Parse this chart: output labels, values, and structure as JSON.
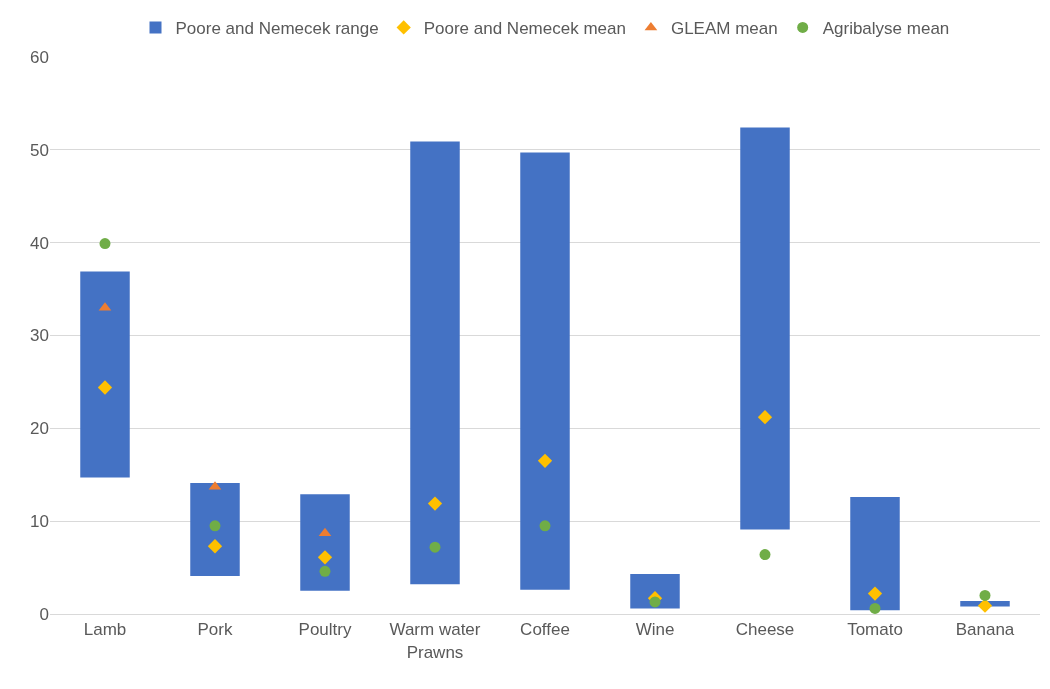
{
  "chart_data": {
    "type": "bar",
    "categories": [
      "Lamb",
      "Pork",
      "Poultry",
      "Warm water Prawns",
      "Coffee",
      "Wine",
      "Cheese",
      "Tomato",
      "Banana"
    ],
    "series": [
      {
        "name": "Poore and Nemecek range",
        "color": "#4472c4",
        "base": [
          14.7,
          4.1,
          2.5,
          3.2,
          2.6,
          0.6,
          9.1,
          0.4,
          0.8
        ],
        "values": [
          22.2,
          10.0,
          10.4,
          47.7,
          47.1,
          3.7,
          43.3,
          12.2,
          0.6
        ]
      },
      {
        "name": "Poore and Nemecek mean",
        "type": "scatter",
        "marker": "diamond",
        "color": "#ffc000",
        "values": [
          24.4,
          7.3,
          6.1,
          11.9,
          16.5,
          1.7,
          21.2,
          2.2,
          0.9
        ]
      },
      {
        "name": "GLEAM mean",
        "type": "scatter",
        "marker": "triangle",
        "color": "#ed7d31",
        "values": [
          33.0,
          13.7,
          8.7,
          null,
          null,
          null,
          null,
          null,
          null
        ]
      },
      {
        "name": "Agribalyse mean",
        "type": "scatter",
        "marker": "circle",
        "color": "#70ad47",
        "values": [
          39.9,
          9.5,
          4.6,
          7.2,
          9.5,
          1.3,
          6.4,
          0.6,
          2.0
        ]
      }
    ],
    "ylim": [
      0,
      60
    ],
    "yticks": [
      0,
      10,
      20,
      30,
      40,
      50,
      60
    ],
    "grid": "y",
    "legend": "top"
  }
}
